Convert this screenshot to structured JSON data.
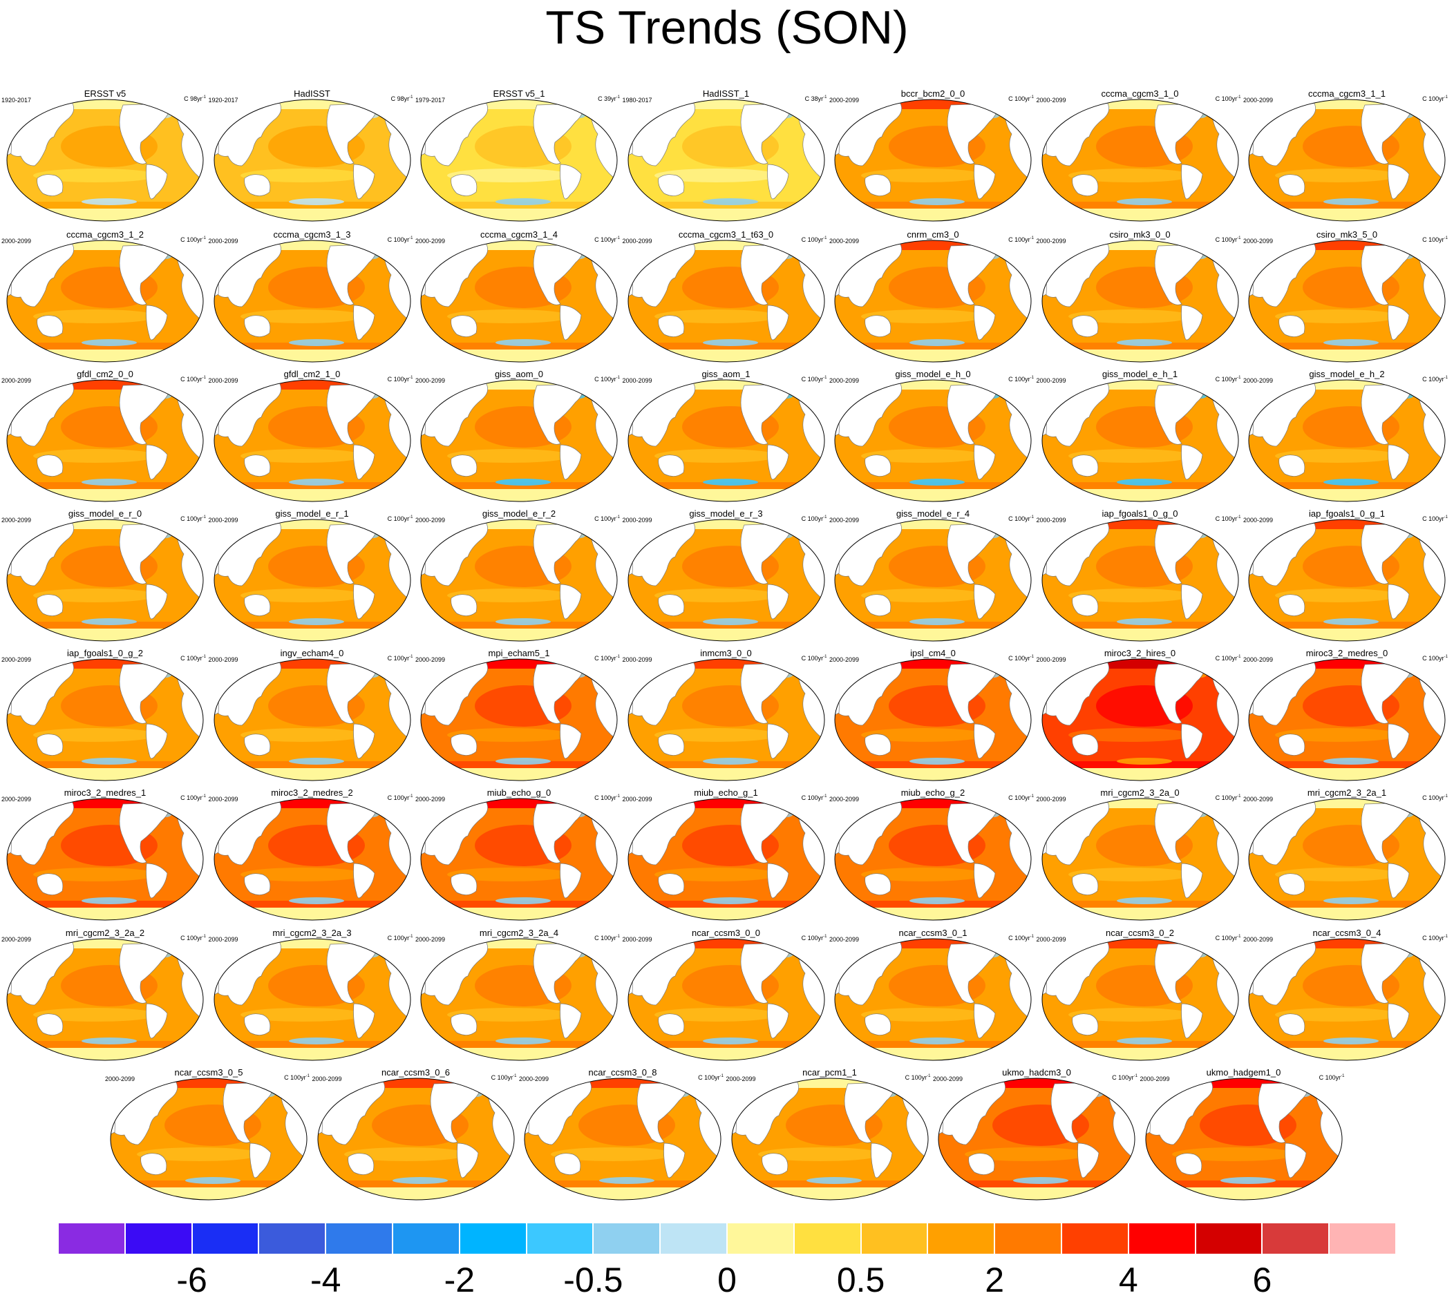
{
  "title": "TS Trends (SON)",
  "units_prefix": "C",
  "colorbar": {
    "colors": [
      "#8a2be2",
      "#3b0bf5",
      "#1a2ef5",
      "#3b5bdc",
      "#2f7aeb",
      "#1e96f2",
      "#00b4ff",
      "#3cc8ff",
      "#8fd0f0",
      "#bee4f5",
      "#fff79a",
      "#ffe040",
      "#ffc020",
      "#ffa000",
      "#ff7a00",
      "#ff4000",
      "#ff0000",
      "#d40000",
      "#d83a3a",
      "#ffb4b4"
    ],
    "labels": [
      "-6",
      "-4",
      "-2",
      "-0.5",
      "0",
      "0.5",
      "2",
      "4",
      "6"
    ]
  },
  "panels": [
    {
      "title": "ERSST v5",
      "period": "1920-2017",
      "units": "98yr",
      "scheme": "obs"
    },
    {
      "title": "HadISST",
      "period": "1920-2017",
      "units": "98yr",
      "scheme": "obs"
    },
    {
      "title": "ERSST v5_1",
      "period": "1979-2017",
      "units": "39yr",
      "scheme": "obsrecent"
    },
    {
      "title": "HadISST_1",
      "period": "1980-2017",
      "units": "38yr",
      "scheme": "obsrecent"
    },
    {
      "title": "bccr_bcm2_0_0",
      "period": "2000-2099",
      "units": "100yr",
      "scheme": "warm"
    },
    {
      "title": "cccma_cgcm3_1_0",
      "period": "2000-2099",
      "units": "100yr",
      "scheme": "mid"
    },
    {
      "title": "cccma_cgcm3_1_1",
      "period": "2000-2099",
      "units": "100yr",
      "scheme": "mid"
    },
    {
      "title": "cccma_cgcm3_1_2",
      "period": "2000-2099",
      "units": "100yr",
      "scheme": "mid"
    },
    {
      "title": "cccma_cgcm3_1_3",
      "period": "2000-2099",
      "units": "100yr",
      "scheme": "mid"
    },
    {
      "title": "cccma_cgcm3_1_4",
      "period": "2000-2099",
      "units": "100yr",
      "scheme": "mid"
    },
    {
      "title": "cccma_cgcm3_1_t63_0",
      "period": "2000-2099",
      "units": "100yr",
      "scheme": "mid"
    },
    {
      "title": "cnrm_cm3_0",
      "period": "2000-2099",
      "units": "100yr",
      "scheme": "warm"
    },
    {
      "title": "csiro_mk3_0_0",
      "period": "2000-2099",
      "units": "100yr",
      "scheme": "mid"
    },
    {
      "title": "csiro_mk3_5_0",
      "period": "2000-2099",
      "units": "100yr",
      "scheme": "warm"
    },
    {
      "title": "gfdl_cm2_0_0",
      "period": "2000-2099",
      "units": "100yr",
      "scheme": "warm"
    },
    {
      "title": "gfdl_cm2_1_0",
      "period": "2000-2099",
      "units": "100yr",
      "scheme": "warm"
    },
    {
      "title": "giss_aom_0",
      "period": "2000-2099",
      "units": "100yr",
      "scheme": "cool"
    },
    {
      "title": "giss_aom_1",
      "period": "2000-2099",
      "units": "100yr",
      "scheme": "cool"
    },
    {
      "title": "giss_model_e_h_0",
      "period": "2000-2099",
      "units": "100yr",
      "scheme": "cool"
    },
    {
      "title": "giss_model_e_h_1",
      "period": "2000-2099",
      "units": "100yr",
      "scheme": "cool"
    },
    {
      "title": "giss_model_e_h_2",
      "period": "2000-2099",
      "units": "100yr",
      "scheme": "cool"
    },
    {
      "title": "giss_model_e_r_0",
      "period": "2000-2099",
      "units": "100yr",
      "scheme": "mid"
    },
    {
      "title": "giss_model_e_r_1",
      "period": "2000-2099",
      "units": "100yr",
      "scheme": "mid"
    },
    {
      "title": "giss_model_e_r_2",
      "period": "2000-2099",
      "units": "100yr",
      "scheme": "mid"
    },
    {
      "title": "giss_model_e_r_3",
      "period": "2000-2099",
      "units": "100yr",
      "scheme": "mid"
    },
    {
      "title": "giss_model_e_r_4",
      "period": "2000-2099",
      "units": "100yr",
      "scheme": "mid"
    },
    {
      "title": "iap_fgoals1_0_g_0",
      "period": "2000-2099",
      "units": "100yr",
      "scheme": "warm"
    },
    {
      "title": "iap_fgoals1_0_g_1",
      "period": "2000-2099",
      "units": "100yr",
      "scheme": "warm"
    },
    {
      "title": "iap_fgoals1_0_g_2",
      "period": "2000-2099",
      "units": "100yr",
      "scheme": "warm"
    },
    {
      "title": "ingv_echam4_0",
      "period": "2000-2099",
      "units": "100yr",
      "scheme": "warm"
    },
    {
      "title": "mpi_echam5_1",
      "period": "2000-2099",
      "units": "100yr",
      "scheme": "hot"
    },
    {
      "title": "inmcm3_0_0",
      "period": "2000-2099",
      "units": "100yr",
      "scheme": "warm"
    },
    {
      "title": "ipsl_cm4_0",
      "period": "2000-2099",
      "units": "100yr",
      "scheme": "hot"
    },
    {
      "title": "miroc3_2_hires_0",
      "period": "2000-2099",
      "units": "100yr",
      "scheme": "hottest"
    },
    {
      "title": "miroc3_2_medres_0",
      "period": "2000-2099",
      "units": "100yr",
      "scheme": "hot"
    },
    {
      "title": "miroc3_2_medres_1",
      "period": "2000-2099",
      "units": "100yr",
      "scheme": "hot"
    },
    {
      "title": "miroc3_2_medres_2",
      "period": "2000-2099",
      "units": "100yr",
      "scheme": "hot"
    },
    {
      "title": "miub_echo_g_0",
      "period": "2000-2099",
      "units": "100yr",
      "scheme": "hot"
    },
    {
      "title": "miub_echo_g_1",
      "period": "2000-2099",
      "units": "100yr",
      "scheme": "hot"
    },
    {
      "title": "miub_echo_g_2",
      "period": "2000-2099",
      "units": "100yr",
      "scheme": "hot"
    },
    {
      "title": "mri_cgcm2_3_2a_0",
      "period": "2000-2099",
      "units": "100yr",
      "scheme": "mid"
    },
    {
      "title": "mri_cgcm2_3_2a_1",
      "period": "2000-2099",
      "units": "100yr",
      "scheme": "mid"
    },
    {
      "title": "mri_cgcm2_3_2a_2",
      "period": "2000-2099",
      "units": "100yr",
      "scheme": "mid"
    },
    {
      "title": "mri_cgcm2_3_2a_3",
      "period": "2000-2099",
      "units": "100yr",
      "scheme": "mid"
    },
    {
      "title": "mri_cgcm2_3_2a_4",
      "period": "2000-2099",
      "units": "100yr",
      "scheme": "mid"
    },
    {
      "title": "ncar_ccsm3_0_0",
      "period": "2000-2099",
      "units": "100yr",
      "scheme": "warm"
    },
    {
      "title": "ncar_ccsm3_0_1",
      "period": "2000-2099",
      "units": "100yr",
      "scheme": "warm"
    },
    {
      "title": "ncar_ccsm3_0_2",
      "period": "2000-2099",
      "units": "100yr",
      "scheme": "warm"
    },
    {
      "title": "ncar_ccsm3_0_4",
      "period": "2000-2099",
      "units": "100yr",
      "scheme": "warm"
    },
    {
      "title": "ncar_ccsm3_0_5",
      "period": "2000-2099",
      "units": "100yr",
      "scheme": "warm"
    },
    {
      "title": "ncar_ccsm3_0_6",
      "period": "2000-2099",
      "units": "100yr",
      "scheme": "warm"
    },
    {
      "title": "ncar_ccsm3_0_8",
      "period": "2000-2099",
      "units": "100yr",
      "scheme": "warm"
    },
    {
      "title": "ncar_pcm1_1",
      "period": "2000-2099",
      "units": "100yr",
      "scheme": "mid"
    },
    {
      "title": "ukmo_hadcm3_0",
      "period": "2000-2099",
      "units": "100yr",
      "scheme": "hot"
    },
    {
      "title": "ukmo_hadgem1_0",
      "period": "2000-2099",
      "units": "100yr",
      "scheme": "hot"
    }
  ]
}
